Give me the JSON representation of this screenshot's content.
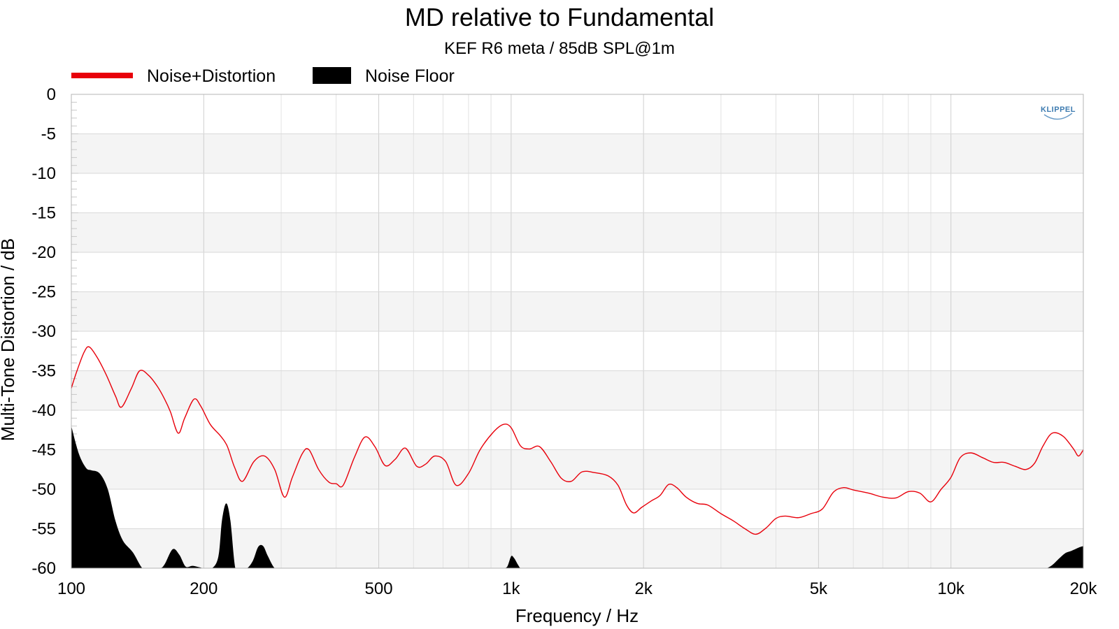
{
  "chart_data": {
    "type": "line",
    "title": "MD relative to Fundamental",
    "subtitle": "KEF R6 meta / 85dB SPL@1m",
    "xlabel": "Frequency / Hz",
    "ylabel": "Multi-Tone Distortion / dB",
    "xscale": "log",
    "xlim": [
      100,
      20000
    ],
    "ylim": [
      -60,
      0
    ],
    "x_ticks": [
      {
        "value": 100,
        "label": "100"
      },
      {
        "value": 200,
        "label": "200"
      },
      {
        "value": 500,
        "label": "500"
      },
      {
        "value": 1000,
        "label": "1k"
      },
      {
        "value": 2000,
        "label": "2k"
      },
      {
        "value": 5000,
        "label": "5k"
      },
      {
        "value": 10000,
        "label": "10k"
      },
      {
        "value": 20000,
        "label": "20k"
      }
    ],
    "y_ticks": [
      0,
      -5,
      -10,
      -15,
      -20,
      -25,
      -30,
      -35,
      -40,
      -45,
      -50,
      -55,
      -60
    ],
    "grid": true,
    "legend_position": "top-left",
    "logo": "KLIPPEL",
    "series": [
      {
        "name": "Noise+Distortion",
        "kind": "line",
        "color": "#e8000b",
        "x": [
          100,
          103,
          107,
          110,
          115,
          120,
          126,
          130,
          137,
          143,
          150,
          157,
          163,
          168,
          175,
          181,
          190,
          197,
          207,
          218,
          226,
          235,
          245,
          260,
          275,
          290,
          305,
          318,
          335,
          347,
          365,
          385,
          400,
          415,
          440,
          465,
          490,
          517,
          545,
          575,
          610,
          640,
          670,
          710,
          750,
          800,
          850,
          910,
          960,
          1000,
          1050,
          1100,
          1160,
          1230,
          1300,
          1370,
          1450,
          1550,
          1660,
          1750,
          1830,
          1900,
          1980,
          2080,
          2180,
          2280,
          2380,
          2500,
          2650,
          2800,
          3000,
          3200,
          3400,
          3600,
          3800,
          4000,
          4200,
          4500,
          4800,
          5100,
          5400,
          5700,
          6000,
          6500,
          7000,
          7500,
          8000,
          8500,
          9000,
          9500,
          10000,
          10500,
          11100,
          11800,
          12500,
          13200,
          14000,
          14800,
          15500,
          16200,
          17000,
          18000,
          19000,
          19500,
          20000
        ],
        "y": [
          -37.2,
          -35.0,
          -32.6,
          -32.0,
          -33.5,
          -35.5,
          -38.2,
          -39.6,
          -37.2,
          -35.0,
          -35.6,
          -37.0,
          -38.6,
          -40.2,
          -42.9,
          -41.0,
          -38.6,
          -39.5,
          -41.8,
          -43.2,
          -44.5,
          -47.2,
          -49.0,
          -46.5,
          -45.8,
          -47.5,
          -51.0,
          -48.5,
          -45.5,
          -45.0,
          -47.5,
          -49.1,
          -49.3,
          -49.5,
          -46.0,
          -43.4,
          -44.6,
          -47.0,
          -46.2,
          -44.8,
          -47.1,
          -46.8,
          -45.8,
          -46.5,
          -49.5,
          -48.0,
          -45.0,
          -42.8,
          -41.8,
          -42.2,
          -44.5,
          -44.9,
          -44.6,
          -46.5,
          -48.6,
          -49.0,
          -47.8,
          -47.9,
          -48.3,
          -49.5,
          -52.0,
          -53.0,
          -52.3,
          -51.5,
          -50.8,
          -49.4,
          -49.8,
          -51.0,
          -51.8,
          -52.0,
          -53.1,
          -54.0,
          -55.0,
          -55.7,
          -54.9,
          -53.7,
          -53.4,
          -53.6,
          -53.1,
          -52.5,
          -50.4,
          -49.8,
          -50.1,
          -50.5,
          -51.0,
          -51.1,
          -50.3,
          -50.5,
          -51.6,
          -50.0,
          -48.5,
          -46.0,
          -45.4,
          -46.0,
          -46.6,
          -46.6,
          -47.1,
          -47.5,
          -46.7,
          -44.5,
          -42.9,
          -43.3,
          -44.9,
          -45.8,
          -45.0
        ]
      },
      {
        "name": "Noise Floor",
        "kind": "area",
        "color": "#000000",
        "x": [
          100,
          104,
          108,
          111,
          116,
          121,
          126,
          131,
          138,
          145,
          150,
          159,
          163,
          170,
          176,
          182,
          189,
          200,
          209,
          216,
          220,
          225,
          230,
          236,
          243,
          251,
          259,
          266,
          273,
          280,
          290,
          300,
          900,
          935,
          960,
          980,
          1000,
          1015,
          1035,
          1050,
          1070,
          1100,
          16000,
          16500,
          17000,
          17600,
          18200,
          18800,
          19500,
          20000
        ],
        "y": [
          -42.0,
          -45.5,
          -47.3,
          -47.6,
          -48.0,
          -50.0,
          -54.0,
          -56.5,
          -58.0,
          -60.0,
          -60.0,
          -60.0,
          -59.5,
          -57.6,
          -58.3,
          -59.8,
          -59.7,
          -60.0,
          -60.0,
          -58.5,
          -54.0,
          -51.8,
          -54.0,
          -60.0,
          -60.0,
          -60.0,
          -59.0,
          -57.3,
          -57.2,
          -58.5,
          -60.0,
          -60.0,
          -60.0,
          -60.0,
          -60.0,
          -59.8,
          -58.5,
          -58.7,
          -59.5,
          -60.0,
          -60.0,
          -60.0,
          -60.0,
          -60.0,
          -59.6,
          -58.8,
          -58.1,
          -57.8,
          -57.4,
          -57.2
        ]
      }
    ]
  }
}
